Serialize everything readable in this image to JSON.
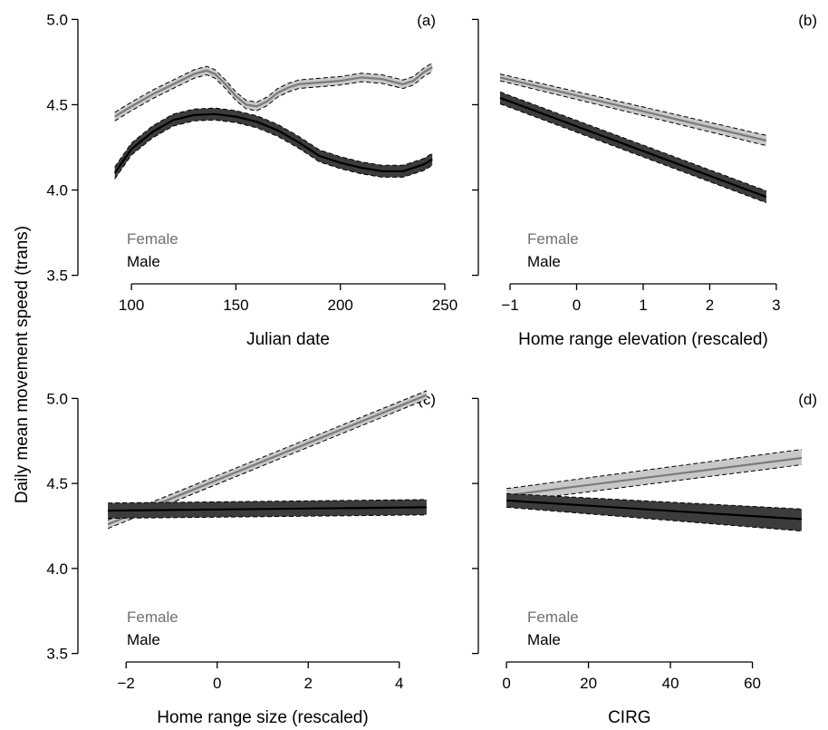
{
  "chart_data": {
    "type": "line",
    "ylabel": "Daily mean movement speed (trans)",
    "panels": [
      {
        "tag": "(a)",
        "xlabel": "Julian date",
        "xlim": [
          80,
          250
        ],
        "ylim": [
          3.45,
          5.05
        ],
        "xticks": [
          100,
          150,
          200,
          250
        ],
        "yticks": [
          3.5,
          4.0,
          4.5,
          5.0
        ],
        "ytick_labels": true,
        "legend": [
          "Female",
          "Male"
        ],
        "series": [
          {
            "name": "Female",
            "x": [
              92,
              100,
              110,
              120,
              130,
              136,
              140,
              145,
              150,
              155,
              160,
              165,
              170,
              175,
              180,
              190,
              200,
              210,
              220,
              230,
              235,
              240,
              244
            ],
            "y": [
              4.43,
              4.49,
              4.56,
              4.62,
              4.68,
              4.7,
              4.68,
              4.62,
              4.55,
              4.5,
              4.49,
              4.52,
              4.57,
              4.6,
              4.62,
              4.63,
              4.64,
              4.66,
              4.65,
              4.62,
              4.64,
              4.69,
              4.72
            ],
            "ci": 0.025
          },
          {
            "name": "Male",
            "x": [
              92,
              100,
              110,
              120,
              130,
              140,
              150,
              160,
              170,
              180,
              190,
              200,
              210,
              220,
              225,
              230,
              235,
              240,
              244
            ],
            "y": [
              4.1,
              4.24,
              4.34,
              4.41,
              4.44,
              4.445,
              4.43,
              4.4,
              4.35,
              4.28,
              4.2,
              4.16,
              4.13,
              4.11,
              4.11,
              4.11,
              4.13,
              4.15,
              4.18
            ],
            "ci": 0.035
          }
        ]
      },
      {
        "tag": "(b)",
        "xlabel": "Home range elevation (rescaled)",
        "xlim": [
          -1.3,
          3.75
        ],
        "ylim": [
          3.45,
          5.05
        ],
        "xticks": [
          -1,
          0,
          1,
          2,
          3
        ],
        "yticks": [
          3.5,
          4.0,
          4.5,
          5.0
        ],
        "ytick_labels": false,
        "legend": [
          "Female",
          "Male"
        ],
        "series": [
          {
            "name": "Female",
            "x": [
              -1.15,
              2.85
            ],
            "y": [
              4.66,
              4.29
            ],
            "ci_lo": [
              0.02,
              0.03
            ],
            "ci_hi": [
              0.02,
              0.03
            ]
          },
          {
            "name": "Male",
            "x": [
              -1.15,
              2.85
            ],
            "y": [
              4.54,
              3.96
            ],
            "ci_lo": [
              0.035,
              0.035
            ],
            "ci_hi": [
              0.035,
              0.035
            ]
          }
        ]
      },
      {
        "tag": "(c)",
        "xlabel": "Home range size (rescaled)",
        "xlim": [
          -2.8,
          5.0
        ],
        "ylim": [
          3.45,
          5.05
        ],
        "xticks": [
          -2,
          0,
          2,
          4
        ],
        "yticks": [
          3.5,
          4.0,
          4.5,
          5.0
        ],
        "ytick_labels": true,
        "legend": [
          "Female",
          "Male"
        ],
        "series": [
          {
            "name": "Female",
            "x": [
              -2.4,
              4.6
            ],
            "y": [
              4.26,
              5.02
            ],
            "ci_lo": [
              0.025,
              0.025
            ],
            "ci_hi": [
              0.025,
              0.025
            ]
          },
          {
            "name": "Male",
            "x": [
              -2.4,
              4.6
            ],
            "y": [
              4.34,
              4.36
            ],
            "ci_lo": [
              0.045,
              0.045
            ],
            "ci_hi": [
              0.045,
              0.045
            ]
          }
        ]
      },
      {
        "tag": "(d)",
        "xlabel": "CIRG",
        "xlim": [
          -4,
          78
        ],
        "ylim": [
          3.45,
          5.05
        ],
        "xticks": [
          0,
          20,
          40,
          60
        ],
        "yticks": [
          3.5,
          4.0,
          4.5,
          5.0
        ],
        "ytick_labels": false,
        "legend": [
          "Female",
          "Male"
        ],
        "series": [
          {
            "name": "Female",
            "x": [
              0,
              72
            ],
            "y": [
              4.43,
              4.65
            ],
            "ci_lo": [
              0.04,
              0.04
            ],
            "ci_hi": [
              0.04,
              0.05
            ]
          },
          {
            "name": "Male",
            "x": [
              0,
              72
            ],
            "y": [
              4.4,
              4.29
            ],
            "ci_lo": [
              0.04,
              0.07
            ],
            "ci_hi": [
              0.04,
              0.06
            ]
          }
        ]
      }
    ]
  },
  "colors": {
    "female_line": "#7a7a7a",
    "female_band": "#c8c8c8",
    "female_text": "#707070",
    "male_line": "#000000",
    "male_band": "#3c3c3c",
    "male_text": "#000000",
    "ci_edge": "#000000"
  }
}
